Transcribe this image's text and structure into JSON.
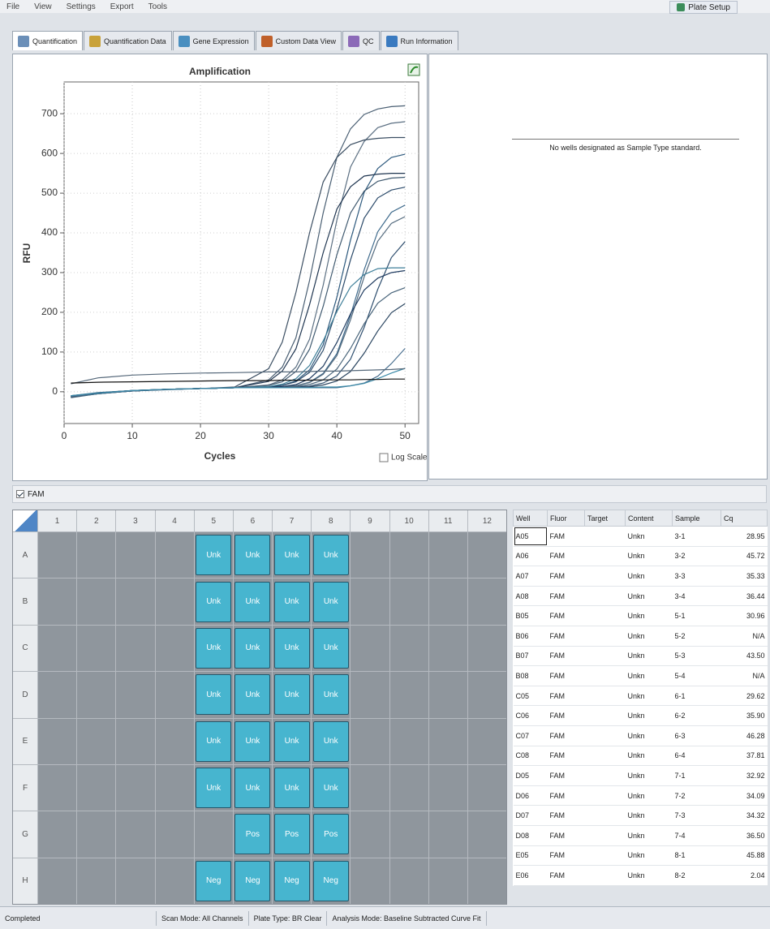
{
  "menu": [
    "File",
    "View",
    "Settings",
    "Export",
    "Tools"
  ],
  "toolbar": {
    "plate_setup": "Plate Setup"
  },
  "tabs": [
    "Quantification",
    "Quantification Data",
    "Gene Expression",
    "Custom Data View",
    "QC",
    "Run Information"
  ],
  "chart_data": {
    "type": "line",
    "title": "Amplification",
    "x_label": "Cycles",
    "y_label": "RFU",
    "x": [
      1,
      5,
      10,
      15,
      20,
      25,
      30,
      32,
      34,
      36,
      38,
      40,
      42,
      44,
      46,
      48,
      50
    ],
    "series": [
      {
        "color": "#4a5f73",
        "values": [
          -15,
          -5,
          2,
          6,
          8,
          10,
          30,
          62,
          136,
          280,
          450,
          590,
          662,
          698,
          712,
          718,
          720
        ]
      },
      {
        "color": "#5b6f82",
        "values": [
          -12,
          -3,
          3,
          6,
          8,
          10,
          17,
          30,
          62,
          132,
          268,
          432,
          566,
          630,
          665,
          676,
          680
        ]
      },
      {
        "color": "#3c4f63",
        "values": [
          -14,
          -4,
          2,
          6,
          8,
          12,
          58,
          125,
          250,
          400,
          528,
          590,
          622,
          634,
          638,
          640,
          640
        ]
      },
      {
        "color": "#2e5a7e",
        "values": [
          -10,
          -2,
          3,
          6,
          8,
          10,
          12,
          16,
          27,
          55,
          118,
          238,
          382,
          502,
          562,
          590,
          598
        ]
      },
      {
        "color": "#1f3550",
        "values": [
          -13,
          -5,
          2,
          6,
          8,
          10,
          26,
          52,
          108,
          219,
          350,
          460,
          516,
          543,
          548,
          550,
          550
        ]
      },
      {
        "color": "#405a70",
        "values": [
          -11,
          -3,
          3,
          6,
          8,
          10,
          16,
          25,
          51,
          107,
          215,
          345,
          450,
          505,
          530,
          538,
          540
        ]
      },
      {
        "color": "#2b4a6a",
        "values": [
          -12,
          -4,
          2,
          6,
          8,
          10,
          12,
          16,
          25,
          49,
          104,
          208,
          332,
          437,
          488,
          508,
          515
        ]
      },
      {
        "color": "#3e6a8c",
        "values": [
          -10,
          -3,
          3,
          6,
          8,
          10,
          10,
          12,
          15,
          24,
          46,
          96,
          192,
          307,
          403,
          452,
          470
        ]
      },
      {
        "color": "#52697d",
        "values": [
          -14,
          -5,
          2,
          5,
          8,
          10,
          10,
          12,
          15,
          23,
          44,
          91,
          181,
          289,
          379,
          424,
          441
        ]
      },
      {
        "color": "#2f4f6f",
        "values": [
          -12,
          -4,
          2,
          6,
          8,
          10,
          10,
          10,
          12,
          14,
          22,
          40,
          82,
          162,
          258,
          338,
          378
        ]
      },
      {
        "color": "#3f7f99",
        "values": [
          -13,
          -5,
          2,
          6,
          8,
          10,
          13,
          19,
          33,
          66,
          128,
          202,
          264,
          295,
          310,
          312,
          312
        ]
      },
      {
        "color": "#1e3a5f",
        "values": [
          -11,
          -3,
          3,
          6,
          8,
          10,
          11,
          13,
          18,
          33,
          64,
          124,
          196,
          256,
          286,
          300,
          305
        ]
      },
      {
        "color": "#48647a",
        "values": [
          -12,
          -4,
          2,
          6,
          8,
          10,
          10,
          11,
          13,
          18,
          30,
          57,
          109,
          171,
          223,
          249,
          262
        ]
      },
      {
        "color": "#2a4560",
        "values": [
          -13,
          -4,
          2,
          6,
          8,
          10,
          10,
          10,
          10,
          12,
          17,
          27,
          51,
          97,
          153,
          199,
          222
        ]
      },
      {
        "color": "#4a7090",
        "values": [
          -12,
          -4,
          2,
          6,
          8,
          10,
          10,
          10,
          10,
          10,
          10,
          10,
          15,
          22,
          39,
          71,
          109
        ]
      },
      {
        "color": "#3b8aa8",
        "values": [
          -10,
          -3,
          3,
          6,
          8,
          10,
          10,
          10,
          10,
          10,
          12,
          12,
          15,
          21,
          33,
          47,
          59
        ]
      },
      {
        "color": "#55687a",
        "values": [
          20,
          35,
          42,
          45,
          47,
          48,
          50,
          50,
          50,
          51,
          52,
          52,
          53,
          54,
          55,
          56,
          58
        ]
      },
      {
        "color": "#111111",
        "values": [
          22,
          24,
          25,
          26,
          27,
          28,
          28,
          29,
          29,
          29,
          30,
          30,
          30,
          31,
          31,
          32,
          32
        ]
      }
    ],
    "xlim": [
      0,
      52
    ],
    "ylim": [
      -80,
      780
    ],
    "xticks": [
      0,
      10,
      20,
      30,
      40,
      50
    ],
    "yticks": [
      0,
      100,
      200,
      300,
      400,
      500,
      600,
      700
    ],
    "grid": true
  },
  "log_scale": {
    "label": "Log Scale",
    "checked": false
  },
  "standard_curve": {
    "message": "No wells designated as Sample Type standard."
  },
  "fluor_filter": {
    "label": "FAM",
    "checked": true
  },
  "plate": {
    "columns": [
      1,
      2,
      3,
      4,
      5,
      6,
      7,
      8,
      9,
      10,
      11,
      12
    ],
    "rows": [
      {
        "label": "A",
        "wells": [
          null,
          null,
          null,
          null,
          "Unk",
          "Unk",
          "Unk",
          "Unk",
          null,
          null,
          null,
          null
        ]
      },
      {
        "label": "B",
        "wells": [
          null,
          null,
          null,
          null,
          "Unk",
          "Unk",
          "Unk",
          "Unk",
          null,
          null,
          null,
          null
        ]
      },
      {
        "label": "C",
        "wells": [
          null,
          null,
          null,
          null,
          "Unk",
          "Unk",
          "Unk",
          "Unk",
          null,
          null,
          null,
          null
        ]
      },
      {
        "label": "D",
        "wells": [
          null,
          null,
          null,
          null,
          "Unk",
          "Unk",
          "Unk",
          "Unk",
          null,
          null,
          null,
          null
        ]
      },
      {
        "label": "E",
        "wells": [
          null,
          null,
          null,
          null,
          "Unk",
          "Unk",
          "Unk",
          "Unk",
          null,
          null,
          null,
          null
        ]
      },
      {
        "label": "F",
        "wells": [
          null,
          null,
          null,
          null,
          "Unk",
          "Unk",
          "Unk",
          "Unk",
          null,
          null,
          null,
          null
        ]
      },
      {
        "label": "G",
        "wells": [
          null,
          null,
          null,
          null,
          null,
          "Pos",
          "Pos",
          "Pos",
          null,
          null,
          null,
          null
        ]
      },
      {
        "label": "H",
        "wells": [
          null,
          null,
          null,
          null,
          "Neg",
          "Neg",
          "Neg",
          "Neg",
          null,
          null,
          null,
          null
        ]
      }
    ]
  },
  "well_table": {
    "headers": [
      "Well",
      "Fluor",
      "Target",
      "Content",
      "Sample",
      "Cq"
    ],
    "rows": [
      [
        "A05",
        "FAM",
        null,
        "Unkn",
        "3-1",
        "28.95"
      ],
      [
        "A06",
        "FAM",
        null,
        "Unkn",
        "3-2",
        "45.72"
      ],
      [
        "A07",
        "FAM",
        null,
        "Unkn",
        "3-3",
        "35.33"
      ],
      [
        "A08",
        "FAM",
        null,
        "Unkn",
        "3-4",
        "36.44"
      ],
      [
        "B05",
        "FAM",
        null,
        "Unkn",
        "5-1",
        "30.96"
      ],
      [
        "B06",
        "FAM",
        null,
        "Unkn",
        "5-2",
        "N/A"
      ],
      [
        "B07",
        "FAM",
        null,
        "Unkn",
        "5-3",
        "43.50"
      ],
      [
        "B08",
        "FAM",
        null,
        "Unkn",
        "5-4",
        "N/A"
      ],
      [
        "C05",
        "FAM",
        null,
        "Unkn",
        "6-1",
        "29.62"
      ],
      [
        "C06",
        "FAM",
        null,
        "Unkn",
        "6-2",
        "35.90"
      ],
      [
        "C07",
        "FAM",
        null,
        "Unkn",
        "6-3",
        "46.28"
      ],
      [
        "C08",
        "FAM",
        null,
        "Unkn",
        "6-4",
        "37.81"
      ],
      [
        "D05",
        "FAM",
        null,
        "Unkn",
        "7-1",
        "32.92"
      ],
      [
        "D06",
        "FAM",
        null,
        "Unkn",
        "7-2",
        "34.09"
      ],
      [
        "D07",
        "FAM",
        null,
        "Unkn",
        "7-3",
        "34.32"
      ],
      [
        "D08",
        "FAM",
        null,
        "Unkn",
        "7-4",
        "36.50"
      ],
      [
        "E05",
        "FAM",
        null,
        "Unkn",
        "8-1",
        "45.88"
      ],
      [
        "E06",
        "FAM",
        null,
        "Unkn",
        "8-2",
        "2.04"
      ]
    ]
  },
  "status_bar": [
    "Completed",
    "Scan Mode: All Channels",
    "Plate Type: BR Clear",
    "Analysis Mode: Baseline Subtracted Curve Fit"
  ]
}
